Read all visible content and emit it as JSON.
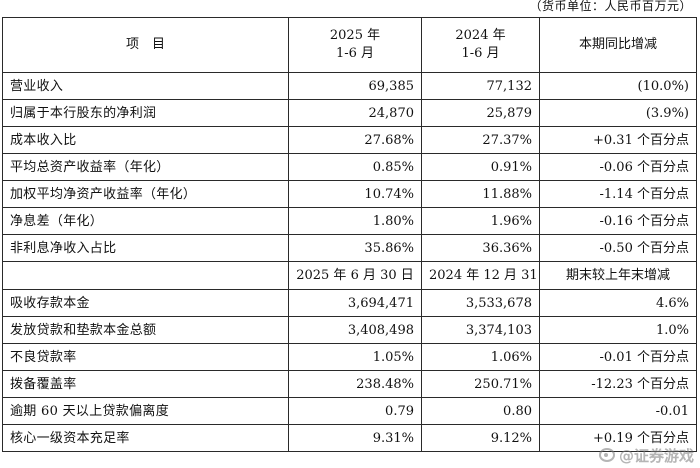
{
  "unit_note": "（货币单位：人民币百万元）",
  "header": {
    "item_label": "项　目",
    "col1_line1": "2025 年",
    "col1_line2": "1-6 月",
    "col2_line1": "2024 年",
    "col2_line2": "1-6 月",
    "change_label": "本期同比增减"
  },
  "period_rows": [
    {
      "label": "营业收入",
      "v2025": "69,385",
      "v2024": "77,132",
      "change": "(10.0%)"
    },
    {
      "label": "归属于本行股东的净利润",
      "v2025": "24,870",
      "v2024": "25,879",
      "change": "(3.9%)"
    },
    {
      "label": "成本收入比",
      "v2025": "27.68%",
      "v2024": "27.37%",
      "change": "+0.31 个百分点"
    },
    {
      "label": "平均总资产收益率（年化）",
      "v2025": "0.85%",
      "v2024": "0.91%",
      "change": "-0.06 个百分点"
    },
    {
      "label": "加权平均净资产收益率（年化）",
      "v2025": "10.74%",
      "v2024": "11.88%",
      "change": "-1.14 个百分点"
    },
    {
      "label": "净息差（年化）",
      "v2025": "1.80%",
      "v2024": "1.96%",
      "change": "-0.16 个百分点"
    },
    {
      "label": "非利息净收入占比",
      "v2025": "35.86%",
      "v2024": "36.36%",
      "change": "-0.50 个百分点"
    }
  ],
  "subheader": {
    "col1": "2025 年 6 月 30 日",
    "col2": "2024 年 12 月 31 日",
    "change_label": "期末较上年末增减"
  },
  "balance_rows": [
    {
      "label": "吸收存款本金",
      "v2025": "3,694,471",
      "v2024": "3,533,678",
      "change": "4.6%"
    },
    {
      "label": "发放贷款和垫款本金总额",
      "v2025": "3,408,498",
      "v2024": "3,374,103",
      "change": "1.0%"
    },
    {
      "label": "不良贷款率",
      "v2025": "1.05%",
      "v2024": "1.06%",
      "change": "-0.01 个百分点"
    },
    {
      "label": "拨备覆盖率",
      "v2025": "238.48%",
      "v2024": "250.71%",
      "change": "-12.23 个百分点"
    },
    {
      "label": "逾期 60 天以上贷款偏离度",
      "v2025": "0.79",
      "v2024": "0.80",
      "change": "-0.01"
    },
    {
      "label": "核心一级资本充足率",
      "v2025": "9.31%",
      "v2024": "9.12%",
      "change": "+0.19 个百分点"
    }
  ],
  "watermark": {
    "text": "@证券游戏",
    "icon": "weibo-logo-icon"
  }
}
